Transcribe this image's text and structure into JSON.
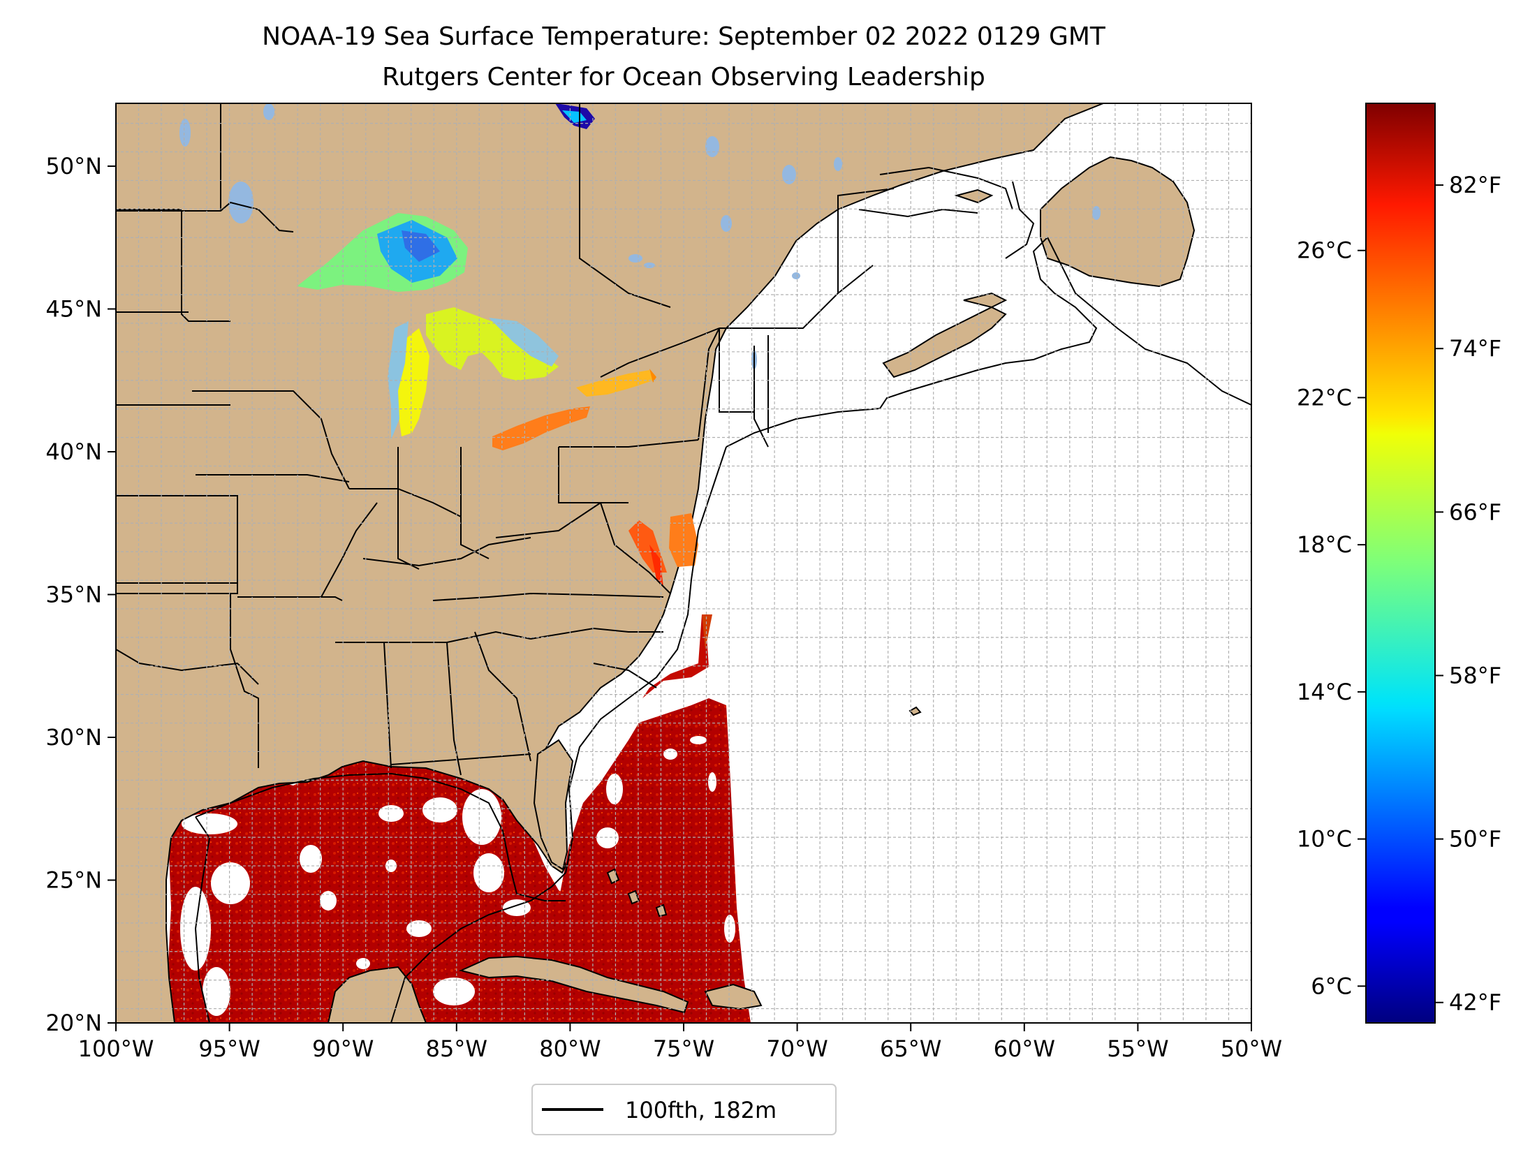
{
  "title": {
    "line1": "NOAA-19 Sea Surface Temperature: September 02 2022 0129 GMT",
    "line2": "Rutgers Center for Ocean Observing Leadership"
  },
  "map": {
    "extent": {
      "lon": [
        -100,
        -50
      ],
      "lat": [
        20,
        52.2
      ]
    },
    "land_color": "#d2b48c",
    "lake_color": "#94b8e0",
    "ocean_nodata_color": "#ffffff",
    "grid": true,
    "lon_ticks": [
      "100°W",
      "95°W",
      "90°W",
      "85°W",
      "80°W",
      "75°W",
      "70°W",
      "65°W",
      "60°W",
      "55°W",
      "50°W"
    ],
    "lat_ticks": [
      "20°N",
      "25°N",
      "30°N",
      "35°N",
      "40°N",
      "45°N",
      "50°N"
    ]
  },
  "legend": {
    "label": "100fth, 182m",
    "line_color": "#000000"
  },
  "colorbar": {
    "cmap": "jet",
    "range_c": [
      5,
      30
    ],
    "celsius_ticks": [
      "6°C",
      "10°C",
      "14°C",
      "18°C",
      "22°C",
      "26°C"
    ],
    "fahrenheit_ticks": [
      "42°F",
      "50°F",
      "58°F",
      "66°F",
      "74°F",
      "82°F"
    ]
  }
}
